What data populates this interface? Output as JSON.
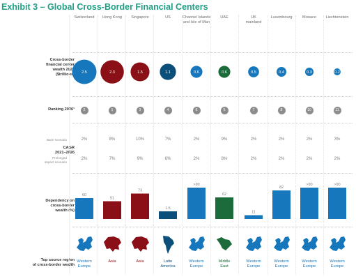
{
  "title": "Exhibit 3 – Global Cross-Border Financial Centers",
  "columns": [
    {
      "name": "Switzerland",
      "name2": ""
    },
    {
      "name": "Hong Kong",
      "name2": ""
    },
    {
      "name": "Singapore",
      "name2": ""
    },
    {
      "name": "US",
      "name2": ""
    },
    {
      "name": "Channel Islands",
      "name2": "and Isle of Man"
    },
    {
      "name": "UAE",
      "name2": ""
    },
    {
      "name": "UK",
      "name2": "mainland"
    },
    {
      "name": "Luxembourg",
      "name2": ""
    },
    {
      "name": "Monaco",
      "name2": ""
    },
    {
      "name": "Liechtenstein",
      "name2": ""
    }
  ],
  "row_labels": {
    "wealth": [
      "Cross-border",
      "financial center",
      "wealth 2021",
      "($trillions)"
    ],
    "ranking": "Ranking 2026¹",
    "cagr": [
      "CAGR",
      "2021–2026"
    ],
    "base": "Base scenario",
    "prolonged": [
      "Prolonged",
      "impact scenario"
    ],
    "dependency": [
      "Dependency on",
      "cross-border",
      "wealth (%)"
    ],
    "region": [
      "Top source region",
      "of cross-border wealth"
    ]
  },
  "colors": {
    "blue": "#1677bc",
    "darkblue": "#0c4f7a",
    "red": "#8b0f16",
    "green": "#1c6b3a",
    "title": "#1f9e84",
    "rank": "#8c8c8c"
  },
  "ranking": [
    "2",
    "1",
    "3",
    "4",
    "6",
    "5",
    "7",
    "8",
    "10",
    "11"
  ],
  "cagr_base": [
    "2%",
    "8%",
    "10%",
    "7%",
    "2%",
    "9%",
    "2%",
    "2%",
    "2%",
    "3%"
  ],
  "cagr_prolonged": [
    "2%",
    "7%",
    "9%",
    "6%",
    "2%",
    "8%",
    "2%",
    "2%",
    "2%",
    "2%"
  ],
  "regions": [
    {
      "l1": "Western",
      "l2": "Europe",
      "color": "#1677bc",
      "icon": "europe-map-icon"
    },
    {
      "l1": "Asia",
      "l2": "",
      "color": "#8b0f16",
      "icon": "asia-map-icon"
    },
    {
      "l1": "Asia",
      "l2": "",
      "color": "#8b0f16",
      "icon": "asia-map-icon"
    },
    {
      "l1": "Latin",
      "l2": "America",
      "color": "#0c4f7a",
      "icon": "latin-america-map-icon"
    },
    {
      "l1": "Western",
      "l2": "Europe",
      "color": "#1677bc",
      "icon": "europe-map-icon"
    },
    {
      "l1": "Middle",
      "l2": "East",
      "color": "#1c6b3a",
      "icon": "middle-east-map-icon"
    },
    {
      "l1": "Western",
      "l2": "Europe",
      "color": "#1677bc",
      "icon": "europe-map-icon"
    },
    {
      "l1": "Western",
      "l2": "Europe",
      "color": "#1677bc",
      "icon": "europe-map-icon"
    },
    {
      "l1": "Western",
      "l2": "Europe",
      "color": "#1677bc",
      "icon": "europe-map-icon"
    },
    {
      "l1": "Western",
      "l2": "Europe",
      "color": "#1677bc",
      "icon": "europe-map-icon"
    }
  ],
  "chart_data": [
    {
      "type": "scatter",
      "title": "Cross-border financial center wealth 2021 ($trillions)",
      "categories": [
        "Switzerland",
        "Hong Kong",
        "Singapore",
        "US",
        "Channel Islands and Isle of Man",
        "UAE",
        "UK mainland",
        "Luxembourg",
        "Monaco",
        "Liechtenstein"
      ],
      "values": [
        2.5,
        2.3,
        1.5,
        1.1,
        0.6,
        0.6,
        0.5,
        0.4,
        0.3,
        0.2
      ],
      "labels": [
        "2.5",
        "2.3",
        "1.5",
        "1.1",
        "0.6",
        "0.6",
        "0.5",
        "0.4",
        "0.3",
        "0.2"
      ],
      "colors": [
        "#1677bc",
        "#8b0f16",
        "#8b0f16",
        "#0c4f7a",
        "#1677bc",
        "#1c6b3a",
        "#1677bc",
        "#1677bc",
        "#1677bc",
        "#1677bc"
      ]
    },
    {
      "type": "bar",
      "title": "Dependency on cross-border wealth (%)",
      "categories": [
        "Switzerland",
        "Hong Kong",
        "Singapore",
        "US",
        "Channel Islands and Isle of Man",
        "UAE",
        "UK mainland",
        "Luxembourg",
        "Monaco",
        "Liechtenstein"
      ],
      "values": [
        60,
        51,
        73,
        1.5,
        90,
        62,
        11,
        82,
        90,
        90
      ],
      "labels": [
        "60",
        "51",
        "73",
        "1.5",
        ">90",
        "62",
        "11",
        "82",
        ">90",
        ">90"
      ],
      "colors": [
        "#1677bc",
        "#8b0f16",
        "#8b0f16",
        "#0c4f7a",
        "#1677bc",
        "#1c6b3a",
        "#1677bc",
        "#1677bc",
        "#1677bc",
        "#1677bc"
      ],
      "ylim": [
        0,
        100
      ]
    }
  ]
}
